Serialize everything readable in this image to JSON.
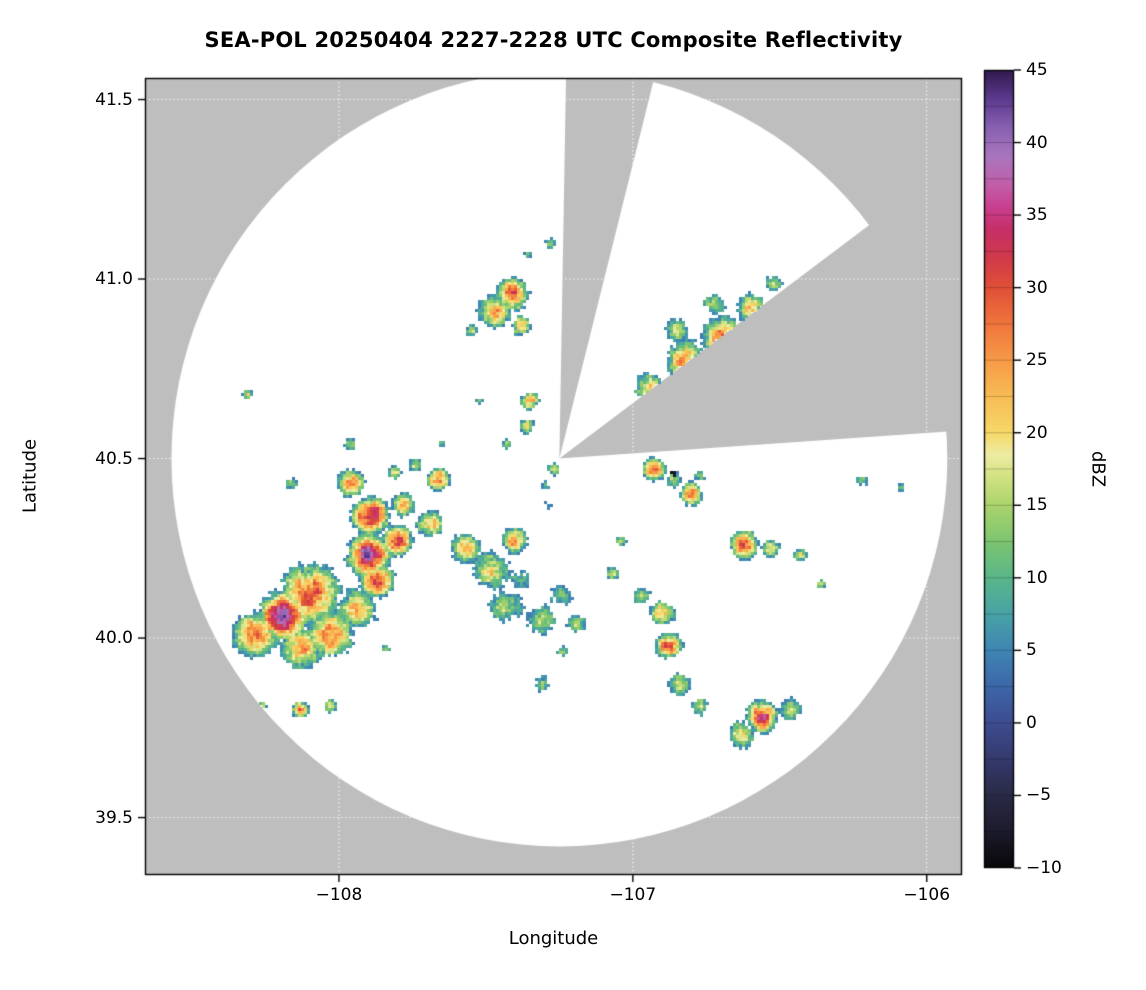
{
  "chart_data": {
    "type": "heatmap",
    "title": "SEA-POL 20250404 2227-2228 UTC Composite Reflectivity",
    "xlabel": "Longitude",
    "ylabel": "Latitude",
    "xlim": [
      -108.66,
      -105.88
    ],
    "ylim": [
      39.34,
      41.56
    ],
    "x_ticks": [
      -108,
      -107,
      -106
    ],
    "x_tick_labels": [
      "−108",
      "−107",
      "−106"
    ],
    "y_ticks": [
      41.5,
      41.0,
      40.5,
      40.0,
      39.5
    ],
    "y_tick_labels": [
      "41.5",
      "41.0",
      "40.5",
      "40.0",
      "39.5"
    ],
    "grid": true,
    "colors": {
      "outside": "#bebebe",
      "inside": "#ffffff",
      "grid": "rgba(255,255,255,0.85)"
    },
    "colorbar": {
      "label": "dBZ",
      "min": -10,
      "max": 45,
      "ticks": [
        45,
        40,
        35,
        30,
        25,
        20,
        15,
        10,
        5,
        0,
        -5,
        -10
      ],
      "tick_labels": [
        "45",
        "40",
        "35",
        "30",
        "25",
        "20",
        "15",
        "10",
        "5",
        "0",
        "−5",
        "−10"
      ],
      "colormap_stops": [
        [
          -10,
          "#070709"
        ],
        [
          -7.5,
          "#1c1b2b"
        ],
        [
          -5,
          "#2a2a46"
        ],
        [
          -2.5,
          "#353a6d"
        ],
        [
          0,
          "#3d4c90"
        ],
        [
          2.5,
          "#3c67a9"
        ],
        [
          5,
          "#3f86b4"
        ],
        [
          7.5,
          "#48a3a6"
        ],
        [
          10,
          "#5ab689"
        ],
        [
          12.5,
          "#7dc571"
        ],
        [
          15,
          "#abd46c"
        ],
        [
          17,
          "#d3e383"
        ],
        [
          18.5,
          "#eeeca3"
        ],
        [
          20,
          "#f6d969"
        ],
        [
          22.5,
          "#f8bc55"
        ],
        [
          25,
          "#f79a47"
        ],
        [
          27.5,
          "#f0753d"
        ],
        [
          30,
          "#e05038"
        ],
        [
          32,
          "#d13a49"
        ],
        [
          34,
          "#c52f67"
        ],
        [
          35.5,
          "#c93f8e"
        ],
        [
          37,
          "#c25da9"
        ],
        [
          39,
          "#aa76bd"
        ],
        [
          41,
          "#8961b2"
        ],
        [
          43,
          "#5c3a8f"
        ],
        [
          45,
          "#311a4d"
        ]
      ]
    },
    "radar": {
      "center_lon": -107.25,
      "center_lat": 40.5,
      "range_deg": 1.32,
      "blocked_sectors_deg": [
        [
          4,
          37
        ],
        [
          76,
          89
        ]
      ]
    },
    "echoes_fields": [
      "lon",
      "lat",
      "radius_deg",
      "peak_dbz"
    ],
    "echoes": [
      [
        -108.19,
        40.06,
        0.061,
        38
      ],
      [
        -108.1,
        40.12,
        0.085,
        30
      ],
      [
        -108.28,
        40.01,
        0.068,
        28
      ],
      [
        -108.03,
        40.01,
        0.075,
        25
      ],
      [
        -108.13,
        39.97,
        0.061,
        26
      ],
      [
        -107.94,
        40.08,
        0.068,
        21
      ],
      [
        -107.89,
        40.34,
        0.048,
        36
      ],
      [
        -107.9,
        40.23,
        0.054,
        38
      ],
      [
        -107.87,
        40.16,
        0.048,
        30
      ],
      [
        -107.96,
        40.43,
        0.041,
        27
      ],
      [
        -107.96,
        40.54,
        0.027,
        16
      ],
      [
        -107.8,
        40.27,
        0.044,
        30
      ],
      [
        -107.78,
        40.37,
        0.041,
        22
      ],
      [
        -107.81,
        40.46,
        0.027,
        18
      ],
      [
        -107.66,
        40.44,
        0.034,
        29
      ],
      [
        -107.69,
        40.32,
        0.041,
        25
      ],
      [
        -107.74,
        40.48,
        0.024,
        18
      ],
      [
        -107.65,
        40.54,
        0.02,
        14
      ],
      [
        -107.57,
        40.25,
        0.048,
        24
      ],
      [
        -107.48,
        40.19,
        0.068,
        20
      ],
      [
        -107.38,
        40.16,
        0.061,
        10
      ],
      [
        -107.43,
        40.09,
        0.068,
        16
      ],
      [
        -107.31,
        40.05,
        0.054,
        18
      ],
      [
        -107.24,
        40.12,
        0.048,
        15
      ],
      [
        -107.19,
        40.04,
        0.041,
        16
      ],
      [
        -107.4,
        40.27,
        0.041,
        25
      ],
      [
        -107.43,
        40.54,
        0.02,
        16
      ],
      [
        -107.3,
        40.43,
        0.027,
        12
      ],
      [
        -107.29,
        40.37,
        0.027,
        8
      ],
      [
        -107.27,
        40.47,
        0.024,
        18
      ],
      [
        -107.41,
        40.96,
        0.048,
        30
      ],
      [
        -107.47,
        40.91,
        0.054,
        24
      ],
      [
        -107.38,
        40.87,
        0.034,
        20
      ],
      [
        -107.55,
        40.86,
        0.027,
        15
      ],
      [
        -107.35,
        40.66,
        0.031,
        22
      ],
      [
        -107.36,
        40.59,
        0.027,
        18
      ],
      [
        -107.28,
        41.1,
        0.024,
        15
      ],
      [
        -107.36,
        41.07,
        0.017,
        13
      ],
      [
        -106.95,
        40.7,
        0.048,
        20
      ],
      [
        -106.82,
        40.77,
        0.065,
        24
      ],
      [
        -106.7,
        40.84,
        0.061,
        26
      ],
      [
        -106.6,
        40.92,
        0.048,
        22
      ],
      [
        -106.85,
        40.86,
        0.044,
        18
      ],
      [
        -106.72,
        40.93,
        0.041,
        17
      ],
      [
        -106.52,
        40.99,
        0.034,
        16
      ],
      [
        -106.93,
        40.47,
        0.034,
        30
      ],
      [
        -106.86,
        40.44,
        0.034,
        15
      ],
      [
        -106.8,
        40.4,
        0.034,
        28
      ],
      [
        -106.77,
        40.45,
        0.027,
        12
      ],
      [
        -106.86,
        40.46,
        0.01,
        -8
      ],
      [
        -106.62,
        40.26,
        0.041,
        30
      ],
      [
        -106.53,
        40.25,
        0.034,
        20
      ],
      [
        -106.43,
        40.23,
        0.027,
        17
      ],
      [
        -106.36,
        40.15,
        0.02,
        14
      ],
      [
        -106.88,
        39.98,
        0.041,
        28
      ],
      [
        -106.9,
        40.07,
        0.041,
        24
      ],
      [
        -106.97,
        40.12,
        0.034,
        18
      ],
      [
        -107.07,
        40.18,
        0.027,
        15
      ],
      [
        -107.04,
        40.27,
        0.024,
        14
      ],
      [
        -106.84,
        39.87,
        0.041,
        20
      ],
      [
        -106.77,
        39.81,
        0.034,
        18
      ],
      [
        -106.56,
        39.78,
        0.041,
        34
      ],
      [
        -106.63,
        39.73,
        0.048,
        20
      ],
      [
        -106.46,
        39.8,
        0.041,
        18
      ],
      [
        -108.13,
        39.8,
        0.027,
        26
      ],
      [
        -108.03,
        39.81,
        0.024,
        22
      ],
      [
        -108.26,
        39.81,
        0.02,
        18
      ],
      [
        -108.16,
        40.43,
        0.027,
        17
      ],
      [
        -107.31,
        39.87,
        0.034,
        16
      ],
      [
        -107.24,
        39.96,
        0.027,
        12
      ],
      [
        -107.84,
        39.97,
        0.024,
        14
      ],
      [
        -106.22,
        40.44,
        0.027,
        15
      ],
      [
        -106.09,
        40.42,
        0.02,
        14
      ],
      [
        -108.31,
        40.68,
        0.02,
        15
      ],
      [
        -107.52,
        40.66,
        0.017,
        14
      ]
    ]
  }
}
